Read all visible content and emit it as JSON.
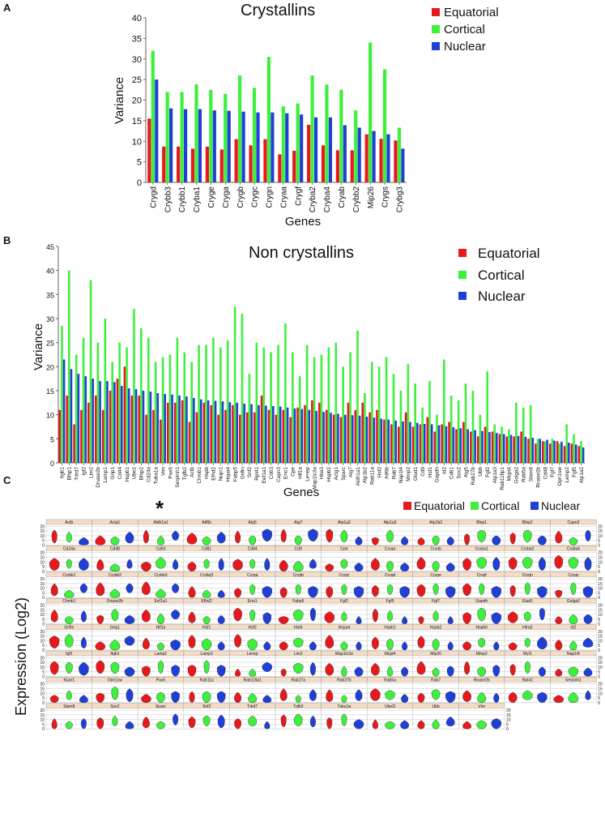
{
  "panel_letters": {
    "a": "A",
    "b": "B",
    "c": "C"
  },
  "asterisk": "*",
  "colors": {
    "equatorial": "#e8191c",
    "cortical": "#3df03c",
    "nuclear": "#1f3fd6",
    "strip": "#f4dcc5",
    "grid": "#bdbdbd"
  },
  "chart_data": [
    {
      "type": "bar",
      "title": "Crystallins",
      "xlabel": "Genes",
      "ylabel": "Variance",
      "ylim": [
        0,
        40
      ],
      "yticks": [
        0,
        5,
        10,
        15,
        20,
        25,
        30,
        35,
        40
      ],
      "legend": [
        "Equatorial",
        "Cortical",
        "Nuclear"
      ],
      "categories": [
        "Crygd",
        "Crybb3",
        "Crybb1",
        "Cryba1",
        "Cryge",
        "Cryga",
        "Crygb",
        "Crygc",
        "Crygn",
        "Cryaa",
        "Crygf",
        "Cryba2",
        "Cryba4",
        "Cryab",
        "Crybb2",
        "Mip26",
        "Crygs",
        "Crybg3"
      ],
      "series": [
        {
          "name": "Equatorial",
          "values": [
            15.5,
            8.7,
            8.7,
            8.2,
            8.7,
            8.0,
            10.5,
            9.0,
            10.5,
            6.8,
            7.7,
            14.0,
            9.0,
            7.8,
            7.8,
            11.7,
            10.6,
            10.2
          ]
        },
        {
          "name": "Cortical",
          "values": [
            32.0,
            22.0,
            22.0,
            23.8,
            22.5,
            21.5,
            26.0,
            23.0,
            30.5,
            18.5,
            19.2,
            26.0,
            23.8,
            22.5,
            17.5,
            34.0,
            27.5,
            13.3
          ]
        },
        {
          "name": "Nuclear",
          "values": [
            25.0,
            18.0,
            17.8,
            17.8,
            17.5,
            17.4,
            17.2,
            17.0,
            17.0,
            16.8,
            16.5,
            15.8,
            15.8,
            13.9,
            13.3,
            12.5,
            11.7,
            8.2
          ]
        }
      ]
    },
    {
      "type": "bar",
      "title": "Non crystallins",
      "xlabel": "Genes",
      "ylabel": "Variance",
      "ylim": [
        0,
        45
      ],
      "yticks": [
        0,
        5,
        10,
        15,
        20,
        25,
        30,
        35,
        40,
        45
      ],
      "legend": [
        "Equatorial",
        "Cortical",
        "Nuclear"
      ],
      "categories": [
        "Itgb1",
        "Bfsp1",
        "Tdrd7",
        "Igf2",
        "Lim2",
        "Dnase2b",
        "Lamp1",
        "Grip1",
        "Cd44",
        "Hspb1",
        "Ube2",
        "Bfsp2",
        "Cd24a",
        "Tuba1a",
        "Vim",
        "Pax6",
        "Serpinh1",
        "Tgfb2",
        "Actb",
        "Chmb1",
        "Hspb",
        "Efhd2",
        "Nupr1",
        "Hspa4",
        "Fabp5",
        "Grifin",
        "Snf2",
        "Rpl41",
        "Eef1a1",
        "Cd63",
        "Capn3",
        "Eno1",
        "Cpe",
        "Hif1a",
        "Lenep",
        "Map1lc3a",
        "Hba3",
        "Hspb2",
        "Actg1",
        "Sparc",
        "Atg7",
        "Aldh1a1",
        "Atp1b2",
        "Rab11a",
        "Hsf2",
        "Atf6b",
        "Rab7",
        "Nap1l4",
        "Mmp2",
        "Glud1",
        "Cd9",
        "Hsf1",
        "Gapdh",
        "Id2",
        "Cd81",
        "Sox2",
        "Atg5",
        "Rab27b",
        "Ubb",
        "Fgf2",
        "Atp1a3",
        "Rab11fip1",
        "Mcpt4",
        "Golga2",
        "Rab5a",
        "Slam8",
        "Rnase2b",
        "Cd48",
        "Fgf7",
        "Opn1sw",
        "Lamp2",
        "Fgf5",
        "Atp1a2"
      ],
      "series": [
        {
          "name": "Equatorial",
          "values": [
            11.0,
            14.0,
            8.0,
            11.0,
            12.5,
            14.0,
            11.0,
            15.0,
            17.5,
            20.0,
            14.0,
            14.0,
            10.0,
            11.0,
            9.0,
            12.5,
            12.5,
            13.0,
            8.5,
            10.5,
            12.5,
            12.0,
            10.0,
            11.0,
            12.0,
            10.0,
            10.5,
            10.5,
            14.0,
            11.0,
            10.0,
            11.0,
            9.5,
            11.5,
            12.0,
            13.0,
            12.5,
            11.0,
            10.0,
            9.5,
            12.5,
            11.0,
            12.5,
            10.5,
            11.0,
            9.0,
            8.0,
            7.5,
            10.5,
            7.5,
            8.0,
            9.5,
            6.5,
            8.0,
            8.5,
            7.0,
            8.5,
            6.5,
            5.5,
            7.5,
            6.5,
            6.0,
            5.5,
            5.5,
            6.5,
            5.0,
            4.0,
            4.5,
            4.0,
            4.5,
            3.5,
            4.0,
            3.5
          ]
        },
        {
          "name": "Cortical",
          "values": [
            28.5,
            40.0,
            22.5,
            26.0,
            38.0,
            25.0,
            30.0,
            21.0,
            25.0,
            24.0,
            32.0,
            28.0,
            26.0,
            21.0,
            22.0,
            22.5,
            26.0,
            23.0,
            21.0,
            24.5,
            24.5,
            26.0,
            24.0,
            25.5,
            32.5,
            31.0,
            18.5,
            25.0,
            24.0,
            23.0,
            24.5,
            29.0,
            23.0,
            18.0,
            24.5,
            22.0,
            22.5,
            24.0,
            25.0,
            20.0,
            23.0,
            27.5,
            14.5,
            21.0,
            20.0,
            22.0,
            18.5,
            15.0,
            20.5,
            16.5,
            11.5,
            17.0,
            10.0,
            21.5,
            14.0,
            13.0,
            16.5,
            15.0,
            10.0,
            19.0,
            8.0,
            7.5,
            7.0,
            12.5,
            11.5,
            12.0,
            5.0,
            4.5,
            5.0,
            4.0,
            8.0,
            6.0,
            4.5
          ]
        },
        {
          "name": "Nuclear",
          "values": [
            21.5,
            19.5,
            18.5,
            18.0,
            17.5,
            17.0,
            17.0,
            16.8,
            16.0,
            15.5,
            15.3,
            15.0,
            14.8,
            14.5,
            14.3,
            14.2,
            14.0,
            13.8,
            13.5,
            13.2,
            13.0,
            12.9,
            12.8,
            12.6,
            12.5,
            12.3,
            12.2,
            12.0,
            11.9,
            11.8,
            11.7,
            11.5,
            11.3,
            11.2,
            11.0,
            10.8,
            10.6,
            10.4,
            10.2,
            10.0,
            9.9,
            9.8,
            9.6,
            9.4,
            9.2,
            9.0,
            8.8,
            8.6,
            8.5,
            8.3,
            8.1,
            8.0,
            7.8,
            7.6,
            7.4,
            7.2,
            7.0,
            6.8,
            6.6,
            6.4,
            6.2,
            6.0,
            5.8,
            5.6,
            5.4,
            5.2,
            5.0,
            4.8,
            4.6,
            4.4,
            4.2,
            3.8,
            3.2
          ]
        }
      ]
    },
    {
      "type": "violin",
      "ylabel": "Expression (Log2)",
      "ylim": [
        0,
        22
      ],
      "yticks": [
        0,
        5,
        10,
        15,
        20
      ],
      "legend": [
        "Equatorial",
        "Cortical",
        "Nuclear"
      ],
      "genes": [
        "Actb",
        "Actg1",
        "Aldh1a1",
        "Atf6b",
        "Atg5",
        "Atg7",
        "Atp1a2",
        "Atp1a3",
        "Atp1b2",
        "Bfsp1",
        "Bfsp2",
        "Capn3",
        "Cd24a",
        "Cd48",
        "Cd63",
        "Cd81",
        "Cd84",
        "Cd9",
        "Cpe",
        "Cryaa",
        "Cryab",
        "Cryba1",
        "Cryba2",
        "Cryba4",
        "Crybb1",
        "Crybb2",
        "Crybb3",
        "Crybg3",
        "Cryga",
        "Crygb",
        "Crygc",
        "Crygd",
        "Cryge",
        "Crygf",
        "Crygn",
        "Crygs",
        "Chmb1",
        "Dnase2b",
        "Eef1a1",
        "Efhd2",
        "Eno1",
        "Fabp5",
        "Fgf2",
        "Fgf5",
        "Fgf7",
        "Gapdh",
        "Glud1",
        "Golga2",
        "Grifin",
        "Grip1",
        "Hif1a",
        "Hsf1",
        "Hsf2",
        "Hsf4",
        "Hspa4",
        "Hspb1",
        "Hspb2",
        "Hspb6",
        "Htra3",
        "Id2",
        "Igf2",
        "Itgb1",
        "Lamp1",
        "Lamp2",
        "Lenep",
        "Lim2",
        "Map1lc3a",
        "Mcpt4",
        "Mip26",
        "Mmp2",
        "Myl1",
        "Nap1l4",
        "Nupr1",
        "Opn1sw",
        "Pax6",
        "Rab11a",
        "Rab11fip1",
        "Rab27a",
        "Rab27b",
        "Rab5a",
        "Rab7",
        "Rnase2b",
        "Rpl41",
        "Serpinh1",
        "Slam8",
        "Sox2",
        "Sparc",
        "Snf2",
        "Tdrd7",
        "Tgfb2",
        "Tuba1a",
        "Ube2l",
        "Ubb",
        "Vim"
      ]
    }
  ],
  "violin_layout": {
    "extra_axis_after_index": 83
  }
}
